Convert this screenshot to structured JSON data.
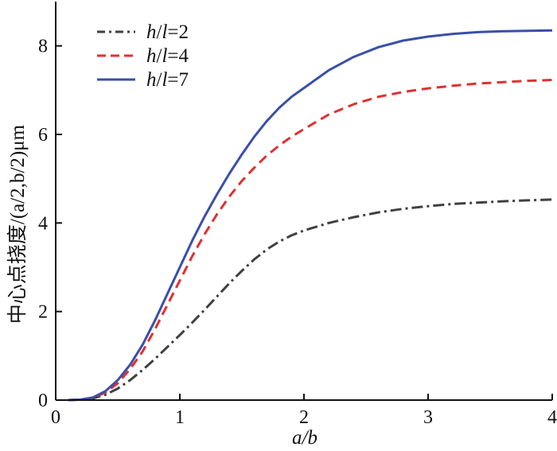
{
  "chart_data": {
    "type": "line",
    "title": "",
    "xlabel": "a/b",
    "ylabel": "中心点挠度/(a/2,b/2)μm",
    "xlim": [
      0,
      4
    ],
    "ylim": [
      0,
      9
    ],
    "xticks": [
      0,
      1,
      2,
      3,
      4
    ],
    "yticks": [
      0,
      2,
      4,
      6,
      8
    ],
    "grid": false,
    "legend_position": "top-left",
    "series": [
      {
        "name": "h/l=2",
        "color": "#404040",
        "dash": "dashdot",
        "x": [
          0.1,
          0.2,
          0.3,
          0.4,
          0.5,
          0.6,
          0.7,
          0.8,
          0.9,
          1.0,
          1.1,
          1.2,
          1.3,
          1.4,
          1.5,
          1.6,
          1.7,
          1.8,
          1.9,
          2.0,
          2.2,
          2.4,
          2.6,
          2.8,
          3.0,
          3.2,
          3.4,
          3.6,
          3.8,
          4.0
        ],
        "y": [
          0.0,
          0.01,
          0.04,
          0.12,
          0.26,
          0.45,
          0.68,
          0.93,
          1.2,
          1.47,
          1.75,
          2.04,
          2.34,
          2.64,
          2.92,
          3.18,
          3.4,
          3.58,
          3.72,
          3.83,
          4.0,
          4.13,
          4.24,
          4.32,
          4.38,
          4.43,
          4.46,
          4.49,
          4.51,
          4.53
        ]
      },
      {
        "name": "h/l=4",
        "color": "#e03030",
        "dash": "dashed",
        "x": [
          0.1,
          0.2,
          0.3,
          0.4,
          0.5,
          0.6,
          0.7,
          0.8,
          0.9,
          1.0,
          1.1,
          1.2,
          1.3,
          1.4,
          1.5,
          1.6,
          1.7,
          1.8,
          1.9,
          2.0,
          2.2,
          2.4,
          2.6,
          2.8,
          3.0,
          3.2,
          3.4,
          3.6,
          3.8,
          4.0
        ],
        "y": [
          0.0,
          0.01,
          0.05,
          0.17,
          0.38,
          0.7,
          1.1,
          1.6,
          2.15,
          2.7,
          3.25,
          3.75,
          4.2,
          4.6,
          4.95,
          5.25,
          5.52,
          5.75,
          5.95,
          6.12,
          6.45,
          6.68,
          6.85,
          6.96,
          7.04,
          7.1,
          7.15,
          7.18,
          7.21,
          7.23
        ]
      },
      {
        "name": "h/l=7",
        "color": "#3a4fa8",
        "dash": "solid",
        "x": [
          0.1,
          0.2,
          0.3,
          0.4,
          0.5,
          0.6,
          0.7,
          0.8,
          0.9,
          1.0,
          1.1,
          1.2,
          1.3,
          1.4,
          1.5,
          1.6,
          1.7,
          1.8,
          1.9,
          2.0,
          2.2,
          2.4,
          2.6,
          2.8,
          3.0,
          3.2,
          3.4,
          3.6,
          3.8,
          4.0
        ],
        "y": [
          0.0,
          0.01,
          0.06,
          0.2,
          0.45,
          0.8,
          1.25,
          1.8,
          2.4,
          3.0,
          3.6,
          4.15,
          4.65,
          5.12,
          5.55,
          5.95,
          6.3,
          6.6,
          6.85,
          7.05,
          7.45,
          7.75,
          7.97,
          8.12,
          8.21,
          8.27,
          8.31,
          8.33,
          8.34,
          8.35
        ]
      }
    ]
  }
}
